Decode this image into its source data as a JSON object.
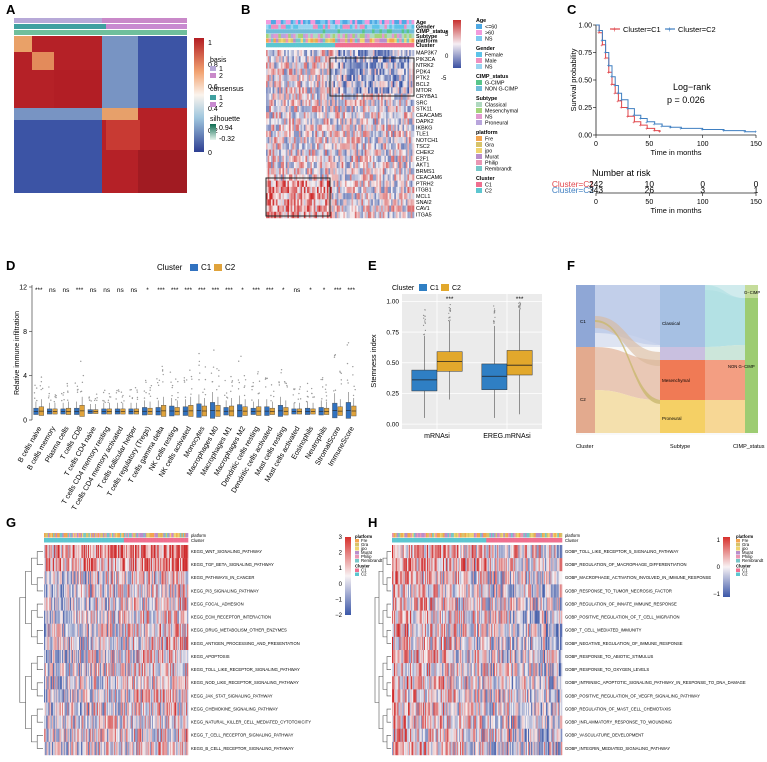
{
  "panels": {
    "A": {
      "label": "A",
      "legend": {
        "colorbar_ticks": [
          "1",
          "0.8",
          "0.6",
          "0.4",
          "0.2",
          "0"
        ],
        "basis_title": "basis",
        "basis_items": [
          "1",
          "2"
        ],
        "consensus_title": "consensus",
        "consensus_items": [
          "1",
          "2"
        ],
        "silhouette_title": "silhouette",
        "silhouette_ticks": [
          "0.94",
          "-0.32"
        ]
      }
    },
    "B": {
      "label": "B",
      "annotation_rows": [
        "Age",
        "Gender",
        "CIMP_status",
        "Subtype",
        "platform",
        "Cluster"
      ],
      "genes": [
        "MAP3K7",
        "PIK3CA",
        "NTRK2",
        "PDK4",
        "PTK2",
        "BCL2",
        "MTOR",
        "CRYBA1",
        "SRC",
        "STK11",
        "CEACAM5",
        "DAPK2",
        "IKBKG",
        "TLE1",
        "NOTCH1",
        "TSC2",
        "CHEK2",
        "E2F1",
        "AKT1",
        "BRMS1",
        "CEACAM6",
        "PTRH2",
        "ITGB1",
        "MCL1",
        "SNAI2",
        "CAV1",
        "ITGA5"
      ],
      "colorbar_ticks": [
        "5",
        "0",
        "-5"
      ],
      "legend": [
        {
          "title": "Age",
          "items": [
            "<=60",
            ">60",
            "NS"
          ]
        },
        {
          "title": "Gender",
          "items": [
            "Female",
            "Male",
            "NS"
          ]
        },
        {
          "title": "CIMP_status",
          "items": [
            "G-CIMP",
            "NON G-CIMP"
          ]
        },
        {
          "title": "Subtype",
          "items": [
            "Classical",
            "Mesenchymal",
            "NS",
            "Proneural"
          ]
        },
        {
          "title": "platform",
          "items": [
            "Fre",
            "Gra",
            "jpo",
            "Murat",
            "Philip",
            "Rembrandt"
          ]
        },
        {
          "title": "Cluster",
          "items": [
            "C1",
            "C2"
          ]
        }
      ]
    },
    "C": {
      "label": "C",
      "legend_c1": "Cluster=C1",
      "legend_c2": "Cluster=C2",
      "ylabel": "Survival probability",
      "xlabel": "Time in months",
      "logrank": "Log−rank",
      "pvalue": "p = 0.026",
      "risk_title": "Number at risk",
      "risk_xlabel": "Time in months",
      "risk_rows": [
        {
          "name": "Cluster=C1",
          "values": [
            "242",
            "10",
            "0",
            "0"
          ]
        },
        {
          "name": "Cluster=C2",
          "values": [
            "343",
            "26",
            "3",
            "1"
          ]
        }
      ]
    },
    "D": {
      "label": "D",
      "legend_title": "Cluster",
      "legend_c1": "C1",
      "legend_c2": "C2",
      "ylabel": "Relative immune infiltration"
    },
    "E": {
      "label": "E",
      "legend_title": "Cluster",
      "legend_c1": "C1",
      "legend_c2": "C2",
      "ylabel": "Stemness index"
    },
    "F": {
      "label": "F",
      "axis_labels": [
        "Cluster",
        "Subtype",
        "CIMP_status"
      ],
      "nodes": {
        "c1": "C1",
        "c2": "C2",
        "classical": "Classical",
        "mesenchymal": "Mesenchymal",
        "proneural": "Proneural",
        "gcimp": "G−CIMP",
        "noncimp": "NON G−CIMP"
      }
    },
    "G": {
      "label": "G",
      "pathways": [
        "KEGG_WNT_SIGNALING_PATHWAY",
        "KEGG_TGF_BETA_SIGNALING_PATHWAY",
        "KEGG_PATHWAYS_IN_CANCER",
        "KEGG_PI3_SIGNALING_PATHWAY",
        "KEGG_FOCAL_ADHESION",
        "KEGG_ECM_RECEPTOR_INTERACTION",
        "KEGG_DRUG_METABOLISM_OTHER_ENZYMES",
        "KEGG_ANTIGEN_PROCESSING_AND_PRESENTATION",
        "KEGG_APOPTOSIS",
        "KEGG_TOLL_LIKE_RECEPTOR_SIGNALING_PATHWAY",
        "KEGG_NOD_LIKE_RECEPTOR_SIGNALING_PATHWAY",
        "KEGG_JAK_STAT_SIGNALING_PATHWAY",
        "KEGG_CHEMOKINE_SIGNALING_PATHWAY",
        "KEGG_NATURAL_KILLER_CELL_MEDIATED_CYTOTOXICITY",
        "KEGG_T_CELL_RECEPTOR_SIGNALING_PATHWAY",
        "KEGG_B_CELL_RECEPTOR_SIGNALING_PATHWAY"
      ],
      "colorbar_ticks": [
        "3",
        "2",
        "1",
        "0",
        "−1",
        "−2"
      ],
      "annot_rows": [
        "platform",
        "Cluster"
      ],
      "legend_platform": [
        "Fre",
        "Gra",
        "jpo",
        "Murat",
        "Philip",
        "Rembrandt"
      ],
      "legend_cluster": [
        "C1",
        "C2"
      ]
    },
    "H": {
      "label": "H",
      "pathways": [
        "GOBP_TOLL_LIKE_RECEPTOR_5_SIGNALING_PATHWAY",
        "GOBP_REGULATION_OF_MACROPHAGE_DIFFERENTIATION",
        "GOBP_MACROPHAGE_ACTIVATION_INVOLVED_IN_IMMUNE_RESPONSE",
        "GOBP_RESPONSE_TO_TUMOR_NECROSIS_FACTOR",
        "GOBP_REGULATION_OF_INNATE_IMMUNE_RESPONSE",
        "GOBP_POSITIVE_REGULATION_OF_T_CELL_MIGRATION",
        "GOBP_T_CELL_MEDIATED_IMMUNITY",
        "GOBP_NEGATIVE_REGULATION_OF_IMMUNE_RESPONSE",
        "GOBP_RESPONSE_TO_ABIOTIC_STIMULUS",
        "GOBP_RESPONSE_TO_OXYGEN_LEVELS",
        "GOBP_INTRINSIC_APOPTOTIC_SIGNALING_PATHWAY_IN_RESPONSE_TO_DNA_DAMAGE",
        "GOBP_POSITIVE_REGULATION_OF_VEGFR_SIGNALING_PATHWAY",
        "GOBP_REGULATION_OF_MAST_CELL_CHEMOTAXIS",
        "GOBP_INFLAMMATORY_RESPONSE_TO_WOUNDING",
        "GOBP_VASCULATURE_DEVELOPMENT",
        "GOBP_INTEGRIN_MEDIATED_SIGNALING_PATHWAY"
      ],
      "colorbar_ticks": [
        "1",
        "0",
        "−1"
      ],
      "annot_rows": [
        "platform",
        "Cluster"
      ],
      "legend_platform": [
        "Fre",
        "Gra",
        "jpo",
        "Murat",
        "Philip",
        "Rembrandt"
      ],
      "legend_cluster": [
        "C1",
        "C2"
      ]
    }
  },
  "chart_data": [
    {
      "panel": "A",
      "type": "heatmap",
      "description_values": "consensus matrix, two clusters",
      "clusters": [
        "1",
        "2"
      ],
      "value_range": [
        0,
        1
      ]
    },
    {
      "panel": "B",
      "type": "heatmap",
      "rows": [
        "MAP3K7",
        "PIK3CA",
        "NTRK2",
        "PDK4",
        "PTK2",
        "BCL2",
        "MTOR",
        "CRYBA1",
        "SRC",
        "STK11",
        "CEACAM5",
        "DAPK2",
        "IKBKG",
        "TLE1",
        "NOTCH1",
        "TSC2",
        "CHEK2",
        "E2F1",
        "AKT1",
        "BRMS1",
        "CEACAM6",
        "PTRH2",
        "ITGB1",
        "MCL1",
        "SNAI2",
        "CAV1",
        "ITGA5"
      ],
      "value_range": [
        -5,
        5
      ]
    },
    {
      "panel": "C",
      "type": "line",
      "xlabel": "Time in months",
      "ylabel": "Survival probability",
      "xlim": [
        0,
        150
      ],
      "ylim": [
        0,
        1
      ],
      "xticks": [
        0,
        50,
        100,
        150
      ],
      "yticks": [
        0.0,
        0.25,
        0.5,
        0.75,
        1.0
      ],
      "series": [
        {
          "name": "Cluster=C1",
          "color": "#e0474c",
          "x": [
            0,
            3,
            6,
            9,
            12,
            15,
            18,
            21,
            24,
            30,
            36,
            42,
            48,
            55,
            60
          ],
          "y": [
            1.0,
            0.93,
            0.82,
            0.7,
            0.57,
            0.46,
            0.38,
            0.31,
            0.25,
            0.17,
            0.12,
            0.09,
            0.06,
            0.04,
            0.03
          ]
        },
        {
          "name": "Cluster=C2",
          "color": "#3f7fc1",
          "x": [
            0,
            3,
            6,
            9,
            12,
            15,
            18,
            21,
            24,
            30,
            36,
            42,
            48,
            55,
            62,
            70,
            80,
            100,
            120,
            140,
            150
          ],
          "y": [
            1.0,
            0.95,
            0.86,
            0.75,
            0.63,
            0.53,
            0.45,
            0.38,
            0.32,
            0.24,
            0.18,
            0.15,
            0.12,
            0.1,
            0.08,
            0.07,
            0.06,
            0.05,
            0.04,
            0.03,
            0.03
          ]
        }
      ],
      "annotation": "Log−rank p = 0.026"
    },
    {
      "panel": "D",
      "type": "bar",
      "subtype": "boxplot",
      "ylabel": "Relative immune infiltration",
      "ylim": [
        0,
        12
      ],
      "yticks": [
        0,
        4,
        8,
        12
      ],
      "categories": [
        "B cells naive",
        "B cells memory",
        "Plasma cells",
        "T cells CD8",
        "T cells CD4 naive",
        "T cells CD4 memory resting",
        "T cells CD4 memory activated",
        "T cells follicular helper",
        "T cells regulatory (Tregs)",
        "T cells gamma delta",
        "NK cells resting",
        "NK cells activated",
        "Monocytes",
        "Macrophages M0",
        "Macrophages M1",
        "Macrophages M2",
        "Dendritic cells resting",
        "Dendritic cells activated",
        "Mast cells resting",
        "Mast cells activated",
        "Eosinophils",
        "Neutrophils",
        "StromalScore",
        "ImmuneScore"
      ],
      "significance": [
        "***",
        "ns",
        "ns",
        "***",
        "ns",
        "ns",
        "ns",
        "ns",
        "*",
        "***",
        "***",
        "***",
        "***",
        "***",
        "***",
        "*",
        "***",
        "***",
        "*",
        "ns",
        "*",
        "*",
        "***",
        "***"
      ],
      "series": [
        {
          "name": "C1",
          "color": "#3172c0",
          "medians": [
            0.2,
            0.1,
            0.1,
            0.2,
            0.0,
            0.1,
            0.1,
            0.1,
            0.3,
            0.3,
            0.5,
            0.4,
            0.8,
            1.0,
            0.3,
            0.7,
            0.2,
            0.4,
            0.6,
            0.1,
            0.2,
            0.3,
            0.9,
            1.0
          ]
        },
        {
          "name": "C2",
          "color": "#e0a33b",
          "medians": [
            0.4,
            0.1,
            0.2,
            0.6,
            0.0,
            0.1,
            0.1,
            0.1,
            0.2,
            0.6,
            0.3,
            0.6,
            0.5,
            0.6,
            0.5,
            0.4,
            0.4,
            0.2,
            0.3,
            0.1,
            0.1,
            0.2,
            0.4,
            0.5
          ]
        }
      ]
    },
    {
      "panel": "E",
      "type": "bar",
      "subtype": "boxplot",
      "ylabel": "Stemness index",
      "ylim": [
        0,
        1
      ],
      "yticks": [
        0.0,
        0.25,
        0.5,
        0.75,
        1.0
      ],
      "categories": [
        "mRNAsi",
        "EREG.mRNAsi"
      ],
      "significance": [
        "***",
        "***"
      ],
      "series": [
        {
          "name": "C1",
          "color": "#2f7fc4",
          "q1": [
            0.27,
            0.28
          ],
          "median": [
            0.36,
            0.39
          ],
          "q3": [
            0.44,
            0.49
          ],
          "whisker_low": [
            0.05,
            0.05
          ],
          "whisker_high": [
            0.72,
            0.8
          ]
        },
        {
          "name": "C2",
          "color": "#e2a82c",
          "q1": [
            0.43,
            0.4
          ],
          "median": [
            0.51,
            0.48
          ],
          "q3": [
            0.59,
            0.6
          ],
          "whisker_low": [
            0.2,
            0.08
          ],
          "whisker_high": [
            0.84,
            0.93
          ]
        }
      ]
    },
    {
      "panel": "F",
      "type": "area",
      "subtype": "alluvial",
      "axes": [
        "Cluster",
        "Subtype",
        "CIMP_status"
      ],
      "strata": {
        "Cluster": [
          "C1",
          "C2"
        ],
        "Subtype": [
          "Classical",
          "Mesenchymal",
          "Proneural"
        ],
        "CIMP_status": [
          "G−CIMP",
          "NON G−CIMP"
        ]
      }
    },
    {
      "panel": "G",
      "type": "heatmap",
      "rows": [
        "KEGG_WNT_SIGNALING_PATHWAY",
        "KEGG_TGF_BETA_SIGNALING_PATHWAY",
        "KEGG_PATHWAYS_IN_CANCER",
        "KEGG_PI3_SIGNALING_PATHWAY",
        "KEGG_FOCAL_ADHESION",
        "KEGG_ECM_RECEPTOR_INTERACTION",
        "KEGG_DRUG_METABOLISM_OTHER_ENZYMES",
        "KEGG_ANTIGEN_PROCESSING_AND_PRESENTATION",
        "KEGG_APOPTOSIS",
        "KEGG_TOLL_LIKE_RECEPTOR_SIGNALING_PATHWAY",
        "KEGG_NOD_LIKE_RECEPTOR_SIGNALING_PATHWAY",
        "KEGG_JAK_STAT_SIGNALING_PATHWAY",
        "KEGG_CHEMOKINE_SIGNALING_PATHWAY",
        "KEGG_NATURAL_KILLER_CELL_MEDIATED_CYTOTOXICITY",
        "KEGG_T_CELL_RECEPTOR_SIGNALING_PATHWAY",
        "KEGG_B_CELL_RECEPTOR_SIGNALING_PATHWAY"
      ],
      "value_range": [
        -2,
        3
      ]
    },
    {
      "panel": "H",
      "type": "heatmap",
      "rows": [
        "GOBP_TOLL_LIKE_RECEPTOR_5_SIGNALING_PATHWAY",
        "GOBP_REGULATION_OF_MACROPHAGE_DIFFERENTIATION",
        "GOBP_MACROPHAGE_ACTIVATION_INVOLVED_IN_IMMUNE_RESPONSE",
        "GOBP_RESPONSE_TO_TUMOR_NECROSIS_FACTOR",
        "GOBP_REGULATION_OF_INNATE_IMMUNE_RESPONSE",
        "GOBP_POSITIVE_REGULATION_OF_T_CELL_MIGRATION",
        "GOBP_T_CELL_MEDIATED_IMMUNITY",
        "GOBP_NEGATIVE_REGULATION_OF_IMMUNE_RESPONSE",
        "GOBP_RESPONSE_TO_ABIOTIC_STIMULUS",
        "GOBP_RESPONSE_TO_OXYGEN_LEVELS",
        "GOBP_INTRINSIC_APOPTOTIC_SIGNALING_PATHWAY_IN_RESPONSE_TO_DNA_DAMAGE",
        "GOBP_POSITIVE_REGULATION_OF_VEGFR_SIGNALING_PATHWAY",
        "GOBP_REGULATION_OF_MAST_CELL_CHEMOTAXIS",
        "GOBP_INFLAMMATORY_RESPONSE_TO_WOUNDING",
        "GOBP_VASCULATURE_DEVELOPMENT",
        "GOBP_INTEGRIN_MEDIATED_SIGNALING_PATHWAY"
      ],
      "value_range": [
        -1,
        1
      ]
    }
  ]
}
